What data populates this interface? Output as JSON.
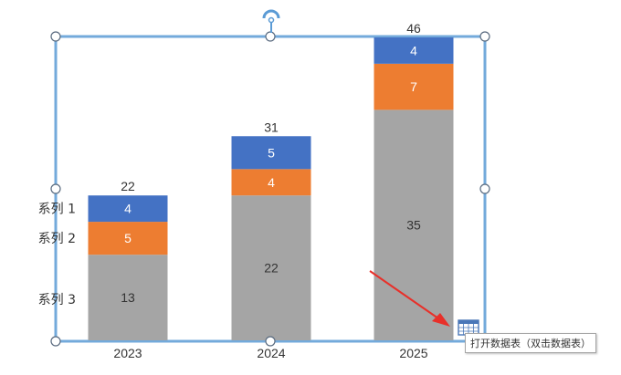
{
  "chart_data": {
    "type": "bar",
    "stacked": true,
    "categories": [
      "2023",
      "2024",
      "2025"
    ],
    "series": [
      {
        "name": "系列 3",
        "values": [
          13,
          22,
          35
        ],
        "color": "#a5a5a5"
      },
      {
        "name": "系列 2",
        "values": [
          5,
          4,
          7
        ],
        "color": "#ed7d31"
      },
      {
        "name": "系列 1",
        "values": [
          4,
          5,
          4
        ],
        "color": "#4472c4"
      }
    ],
    "totals": [
      22,
      31,
      46
    ],
    "ylim": [
      0,
      46
    ],
    "grid": false,
    "legend_placement": "left, beside the first bar"
  },
  "ui": {
    "chart_selected": true,
    "data_table_button": {
      "icon": "table-grid-icon",
      "tooltip": "打开数据表（双击数据表）"
    },
    "annotation_arrow_color": "#e8302a",
    "selection_color": "#5b9bd5"
  }
}
